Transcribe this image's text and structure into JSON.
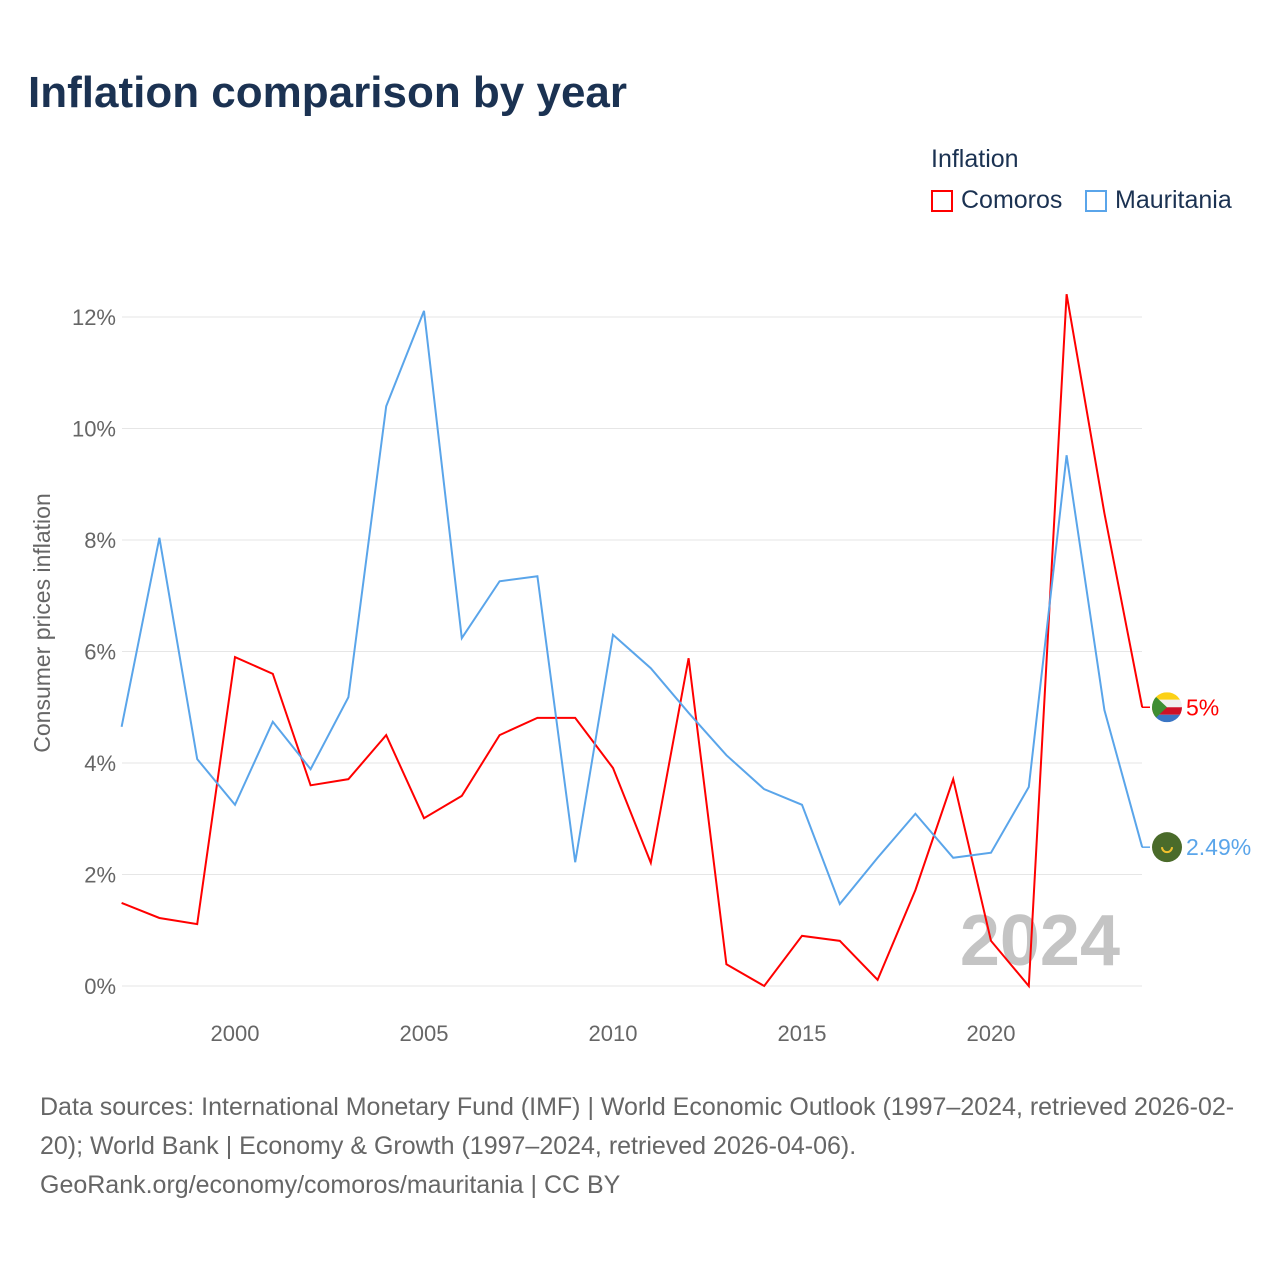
{
  "chart_data": {
    "type": "line",
    "title": "Inflation comparison by year",
    "ylabel": "Consumer prices inflation",
    "xlabel": "",
    "ylim": [
      0,
      12
    ],
    "xlim": [
      1997,
      2024
    ],
    "yticks": [
      "0%",
      "2%",
      "4%",
      "6%",
      "8%",
      "10%",
      "12%"
    ],
    "xticks": [
      "2000",
      "2005",
      "2010",
      "2015",
      "2020"
    ],
    "legend_title": "Inflation",
    "legend_position": "top-right",
    "watermark_year": "2024",
    "x": [
      1997,
      1998,
      1999,
      2000,
      2001,
      2002,
      2003,
      2004,
      2005,
      2006,
      2007,
      2008,
      2009,
      2010,
      2011,
      2012,
      2013,
      2014,
      2015,
      2016,
      2017,
      2018,
      2019,
      2020,
      2021,
      2022,
      2023,
      2024
    ],
    "series": [
      {
        "name": "Comoros",
        "color": "#ff0000",
        "end_label": "5%",
        "values": [
          1.49,
          1.22,
          1.11,
          5.9,
          5.6,
          3.6,
          3.71,
          4.5,
          3.01,
          3.41,
          4.5,
          4.81,
          4.81,
          3.91,
          2.21,
          5.88,
          0.39,
          0,
          0.9,
          0.81,
          0.11,
          1.72,
          3.71,
          0.81,
          0,
          12.41,
          8.48,
          5
        ]
      },
      {
        "name": "Mauritania",
        "color": "#5aa5ea",
        "end_label": "2.49%",
        "values": [
          4.65,
          8.04,
          4.07,
          3.25,
          4.74,
          3.89,
          5.18,
          10.4,
          12.11,
          6.24,
          7.26,
          7.35,
          2.22,
          6.3,
          5.7,
          4.9,
          4.14,
          3.53,
          3.25,
          1.47,
          2.3,
          3.09,
          2.3,
          2.39,
          3.57,
          9.52,
          4.95,
          2.49
        ]
      }
    ]
  },
  "sources": {
    "line1": "Data sources: International Monetary Fund (IMF) | World Economic Outlook (1997–2024, retrieved 2026-02-20); World Bank | Economy & Growth (1997–2024, retrieved 2026-04-06).",
    "line2": "GeoRank.org/economy/comoros/mauritania | CC BY"
  }
}
